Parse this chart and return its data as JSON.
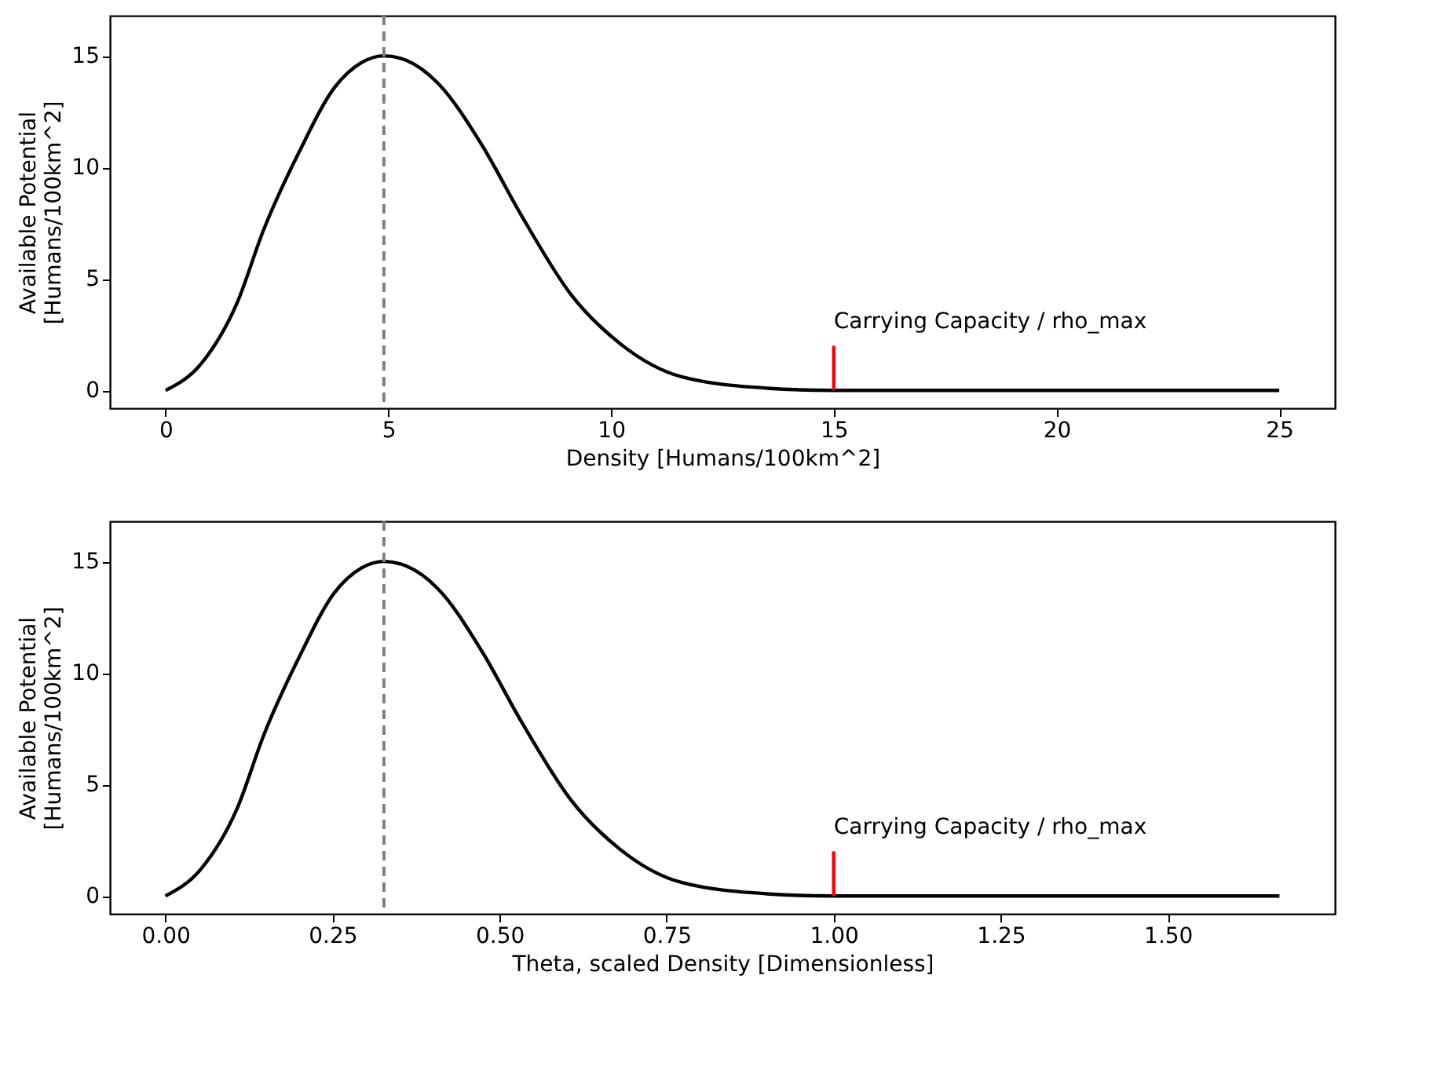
{
  "chart_data": [
    {
      "type": "line",
      "xlabel": "Density [Humans/100km^2]",
      "ylabel": "Available Potential\n[Humans/100km^2]",
      "xlim": [
        -1.25,
        26.25
      ],
      "ylim": [
        -0.8,
        16.8
      ],
      "xticks": [
        0,
        5,
        10,
        15,
        20,
        25
      ],
      "yticks": [
        0,
        5,
        10,
        15
      ],
      "grid": false,
      "series": [
        {
          "color": "#000000",
          "line_style": "solid",
          "x": [
            0,
            0.8,
            1.6,
            2.2,
            3.0,
            3.8,
            4.4,
            4.9,
            5.4,
            6.1,
            7.1,
            8.0,
            9.1,
            10.2,
            11.6,
            13.5,
            15,
            20,
            25
          ],
          "values": [
            0,
            1.2,
            3.9,
            7.2,
            10.7,
            13.6,
            14.7,
            15,
            14.8,
            13.8,
            11,
            7.8,
            4.3,
            2.1,
            0.6,
            0.1,
            0,
            0,
            0
          ]
        },
        {
          "color": "#ff0000",
          "line_style": "solid",
          "x": [
            15,
            15
          ],
          "values": [
            0,
            2
          ]
        }
      ],
      "ref_lines": [
        {
          "axis": "x",
          "value": 4.9,
          "color": "#808080",
          "line_style": "dashed"
        }
      ],
      "annotations": [
        "Carrying Capacity / rho_max"
      ]
    },
    {
      "type": "line",
      "xlabel": "Theta, scaled Density [Dimensionless]",
      "ylabel": "Available Potential\n[Humans/100km^2]",
      "xlim": [
        -0.083,
        1.75
      ],
      "ylim": [
        -0.8,
        16.8
      ],
      "xticks": [
        {
          "value": 0,
          "label": "0.00"
        },
        {
          "value": 0.25,
          "label": "0.25"
        },
        {
          "value": 0.5,
          "label": "0.50"
        },
        {
          "value": 0.75,
          "label": "0.75"
        },
        {
          "value": 1,
          "label": "1.00"
        },
        {
          "value": 1.25,
          "label": "1.25"
        },
        {
          "value": 1.5,
          "label": "1.50"
        }
      ],
      "yticks": [
        0,
        5,
        10,
        15
      ],
      "grid": false,
      "series": [
        {
          "color": "#000000",
          "line_style": "solid",
          "x": [
            0,
            0.053,
            0.107,
            0.147,
            0.2,
            0.253,
            0.293,
            0.327,
            0.36,
            0.407,
            0.473,
            0.533,
            0.607,
            0.68,
            0.773,
            0.9,
            1.0,
            1.333,
            1.667
          ],
          "values": [
            0,
            1.2,
            3.9,
            7.2,
            10.7,
            13.6,
            14.7,
            15,
            14.8,
            13.8,
            11,
            7.8,
            4.3,
            2.1,
            0.6,
            0.1,
            0,
            0,
            0
          ]
        },
        {
          "color": "#ff0000",
          "line_style": "solid",
          "x": [
            1.0,
            1.0
          ],
          "values": [
            0,
            2
          ]
        }
      ],
      "ref_lines": [
        {
          "axis": "x",
          "value": 0.327,
          "color": "#808080",
          "line_style": "dashed"
        }
      ],
      "annotations": [
        "Carrying Capacity / rho_max"
      ]
    }
  ]
}
